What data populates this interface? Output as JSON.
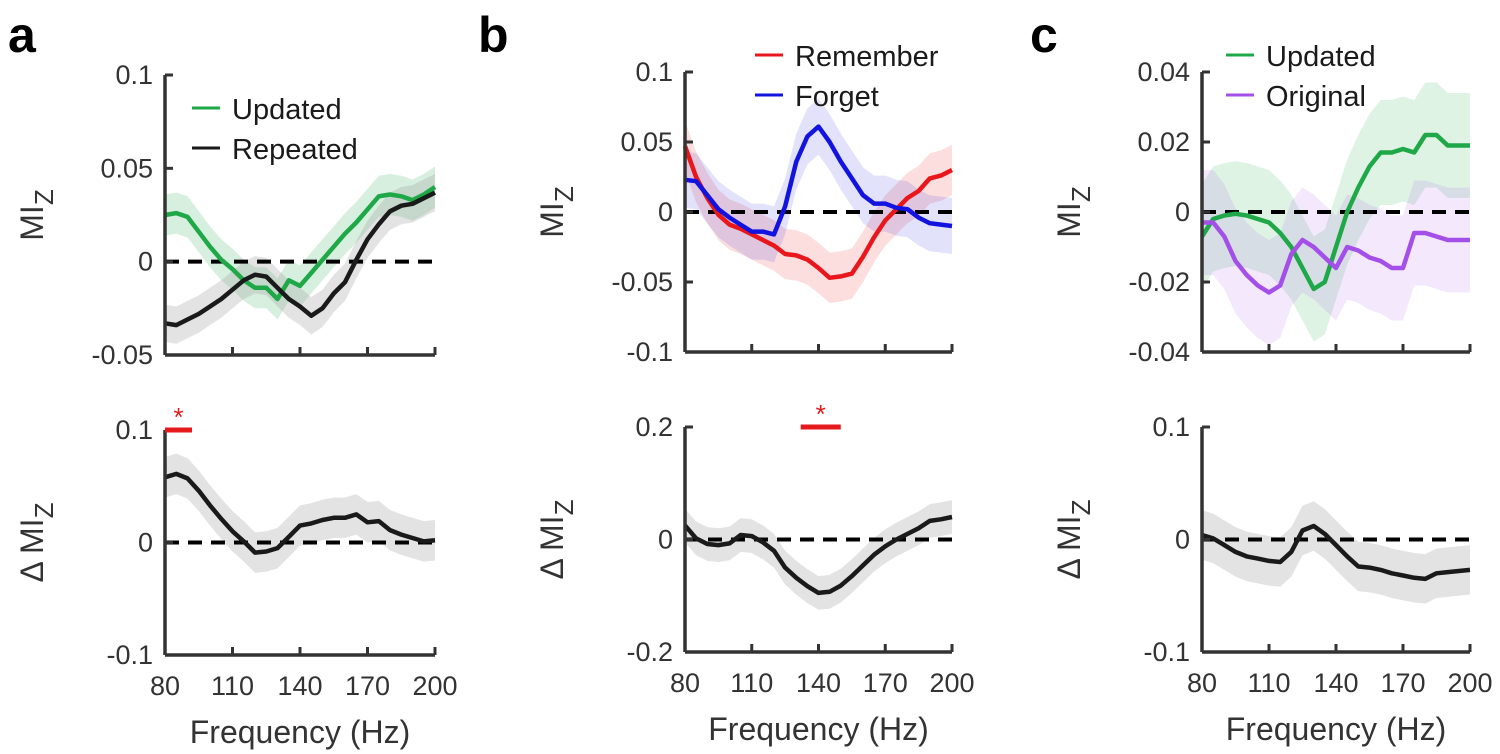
{
  "figure": {
    "panel_labels": [
      "a",
      "b",
      "c"
    ],
    "x_axis_label": "Frequency (Hz)",
    "y_label_top": "MI",
    "y_label_bottom": "Δ MI",
    "y_label_subscript": "Z",
    "significance_mark": "*"
  },
  "chart_data": [
    {
      "id": "a_top",
      "type": "line",
      "panel": "a",
      "xlim": [
        80,
        200
      ],
      "ylim": [
        -0.05,
        0.1
      ],
      "xticks": [
        80,
        110,
        140,
        170,
        200
      ],
      "xtick_labels": [
        "80",
        "110",
        "140",
        "170",
        "200"
      ],
      "yticks": [
        -0.05,
        0,
        0.05,
        0.1
      ],
      "ytick_labels": [
        "-0.05",
        "0",
        "0.05",
        "0.1"
      ],
      "show_xticklabels": false,
      "zero_line": true,
      "legend": {
        "position": "top-right",
        "entries": [
          {
            "label": "Updated",
            "color": "#1fa847"
          },
          {
            "label": "Repeated",
            "color": "#1a1a1a"
          }
        ]
      },
      "x": [
        80,
        85,
        90,
        95,
        100,
        105,
        110,
        115,
        120,
        125,
        130,
        135,
        140,
        145,
        150,
        155,
        160,
        165,
        170,
        175,
        180,
        185,
        190,
        195,
        200
      ],
      "series": [
        {
          "name": "Updated",
          "color": "#1fa847",
          "band": "#1fa847",
          "band_opacity": 0.18,
          "values": [
            0.025,
            0.026,
            0.024,
            0.016,
            0.008,
            0.001,
            -0.004,
            -0.01,
            -0.014,
            -0.014,
            -0.02,
            -0.01,
            -0.013,
            -0.006,
            0.001,
            0.008,
            0.015,
            0.021,
            0.028,
            0.035,
            0.036,
            0.035,
            0.033,
            0.036,
            0.04
          ],
          "error": 0.011
        },
        {
          "name": "Repeated",
          "color": "#1a1a1a",
          "band": "#9a9a9a",
          "band_opacity": 0.28,
          "values": [
            -0.033,
            -0.034,
            -0.031,
            -0.028,
            -0.024,
            -0.02,
            -0.015,
            -0.01,
            -0.007,
            -0.008,
            -0.014,
            -0.02,
            -0.024,
            -0.029,
            -0.025,
            -0.017,
            -0.011,
            0.001,
            0.012,
            0.02,
            0.027,
            0.03,
            0.031,
            0.034,
            0.037
          ],
          "error": 0.01
        }
      ]
    },
    {
      "id": "a_bottom",
      "type": "line",
      "panel": "a",
      "xlim": [
        80,
        200
      ],
      "ylim": [
        -0.1,
        0.1
      ],
      "xticks": [
        80,
        110,
        140,
        170,
        200
      ],
      "xtick_labels": [
        "80",
        "110",
        "140",
        "170",
        "200"
      ],
      "yticks": [
        -0.1,
        0,
        0.1
      ],
      "ytick_labels": [
        "-0.1",
        "0",
        "0.1"
      ],
      "show_xticklabels": true,
      "zero_line": true,
      "significance": {
        "x_start": 80,
        "x_end": 92,
        "y": 0.1
      },
      "x": [
        80,
        85,
        90,
        95,
        100,
        105,
        110,
        115,
        120,
        125,
        130,
        135,
        140,
        145,
        150,
        155,
        160,
        165,
        170,
        175,
        180,
        185,
        190,
        195,
        200
      ],
      "series": [
        {
          "name": "Δ",
          "color": "#1a1a1a",
          "band": "#9a9a9a",
          "band_opacity": 0.28,
          "values": [
            0.058,
            0.061,
            0.057,
            0.046,
            0.033,
            0.021,
            0.01,
            0.001,
            -0.009,
            -0.008,
            -0.005,
            0.005,
            0.015,
            0.017,
            0.02,
            0.022,
            0.022,
            0.025,
            0.018,
            0.019,
            0.011,
            0.007,
            0.004,
            0.001,
            0.002
          ],
          "error": 0.018
        }
      ]
    },
    {
      "id": "b_top",
      "type": "line",
      "panel": "b",
      "xlim": [
        80,
        200
      ],
      "ylim": [
        -0.1,
        0.1
      ],
      "xticks": [
        80,
        110,
        140,
        170,
        200
      ],
      "xtick_labels": [
        "80",
        "110",
        "140",
        "170",
        "200"
      ],
      "yticks": [
        -0.1,
        -0.05,
        0,
        0.05,
        0.1
      ],
      "ytick_labels": [
        "-0.1",
        "-0.05",
        "0",
        "0.05",
        "0.1"
      ],
      "show_xticklabels": false,
      "zero_line": true,
      "legend": {
        "position": "top-right",
        "entries": [
          {
            "label": "Remember",
            "color": "#e8171c"
          },
          {
            "label": "Forget",
            "color": "#1313e0"
          }
        ]
      },
      "x": [
        80,
        85,
        90,
        95,
        100,
        105,
        110,
        115,
        120,
        125,
        130,
        135,
        140,
        145,
        150,
        155,
        160,
        165,
        170,
        175,
        180,
        185,
        190,
        195,
        200
      ],
      "series": [
        {
          "name": "Remember",
          "color": "#e8171c",
          "band": "#e8171c",
          "band_opacity": 0.14,
          "values": [
            0.047,
            0.025,
            0.01,
            -0.002,
            -0.009,
            -0.012,
            -0.016,
            -0.02,
            -0.024,
            -0.03,
            -0.031,
            -0.034,
            -0.04,
            -0.047,
            -0.046,
            -0.044,
            -0.032,
            -0.018,
            -0.006,
            0.002,
            0.01,
            0.015,
            0.024,
            0.026,
            0.03
          ],
          "error": 0.018
        },
        {
          "name": "Forget",
          "color": "#1313e0",
          "band": "#1313e0",
          "band_opacity": 0.12,
          "values": [
            0.023,
            0.022,
            0.012,
            0.002,
            -0.004,
            -0.009,
            -0.014,
            -0.014,
            -0.016,
            0.004,
            0.036,
            0.054,
            0.061,
            0.05,
            0.036,
            0.024,
            0.012,
            0.006,
            0.006,
            0.003,
            0.002,
            -0.004,
            -0.008,
            -0.009,
            -0.01
          ],
          "error": 0.02
        }
      ]
    },
    {
      "id": "b_bottom",
      "type": "line",
      "panel": "b",
      "xlim": [
        80,
        200
      ],
      "ylim": [
        -0.2,
        0.2
      ],
      "xticks": [
        80,
        110,
        140,
        170,
        200
      ],
      "xtick_labels": [
        "80",
        "110",
        "140",
        "170",
        "200"
      ],
      "yticks": [
        -0.2,
        0,
        0.2
      ],
      "ytick_labels": [
        "-0.2",
        "0",
        "0.2"
      ],
      "show_xticklabels": true,
      "zero_line": true,
      "significance": {
        "x_start": 132,
        "x_end": 150,
        "y": 0.2
      },
      "x": [
        80,
        85,
        90,
        95,
        100,
        105,
        110,
        115,
        120,
        125,
        130,
        135,
        140,
        145,
        150,
        155,
        160,
        165,
        170,
        175,
        180,
        185,
        190,
        195,
        200
      ],
      "series": [
        {
          "name": "Δ",
          "color": "#1a1a1a",
          "band": "#9a9a9a",
          "band_opacity": 0.28,
          "values": [
            0.025,
            0.002,
            -0.008,
            -0.01,
            -0.007,
            0.008,
            0.006,
            -0.005,
            -0.02,
            -0.05,
            -0.068,
            -0.083,
            -0.095,
            -0.093,
            -0.082,
            -0.065,
            -0.046,
            -0.027,
            -0.012,
            0.0,
            0.01,
            0.02,
            0.033,
            0.036,
            0.04
          ],
          "error": 0.03
        }
      ]
    },
    {
      "id": "c_top",
      "type": "line",
      "panel": "c",
      "xlim": [
        80,
        200
      ],
      "ylim": [
        -0.04,
        0.04
      ],
      "xticks": [
        80,
        110,
        140,
        170,
        200
      ],
      "xtick_labels": [
        "80",
        "110",
        "140",
        "170",
        "200"
      ],
      "yticks": [
        -0.04,
        -0.02,
        0,
        0.02,
        0.04
      ],
      "ytick_labels": [
        "-0.04",
        "-0.02",
        "0",
        "0.02",
        "0.04"
      ],
      "show_xticklabels": false,
      "zero_line": true,
      "legend": {
        "position": "top-right",
        "entries": [
          {
            "label": "Updated",
            "color": "#1fa847"
          },
          {
            "label": "Original",
            "color": "#a34fe8"
          }
        ]
      },
      "x": [
        80,
        85,
        90,
        95,
        100,
        105,
        110,
        115,
        120,
        125,
        130,
        135,
        140,
        145,
        150,
        155,
        160,
        165,
        170,
        175,
        180,
        185,
        190,
        195,
        200
      ],
      "series": [
        {
          "name": "Updated",
          "color": "#1fa847",
          "band": "#1fa847",
          "band_opacity": 0.14,
          "values": [
            -0.007,
            -0.002,
            -0.001,
            -0.0005,
            -0.001,
            -0.002,
            -0.003,
            -0.006,
            -0.01,
            -0.016,
            -0.022,
            -0.02,
            -0.01,
            0.0,
            0.007,
            0.013,
            0.017,
            0.017,
            0.018,
            0.017,
            0.022,
            0.022,
            0.019,
            0.019,
            0.019
          ],
          "error": 0.015
        },
        {
          "name": "Original",
          "color": "#a34fe8",
          "band": "#a34fe8",
          "band_opacity": 0.13,
          "values": [
            -0.003,
            -0.003,
            -0.007,
            -0.014,
            -0.018,
            -0.021,
            -0.023,
            -0.021,
            -0.012,
            -0.008,
            -0.01,
            -0.013,
            -0.016,
            -0.01,
            -0.011,
            -0.013,
            -0.014,
            -0.016,
            -0.016,
            -0.006,
            -0.006,
            -0.007,
            -0.008,
            -0.008,
            -0.008
          ],
          "error": 0.015
        }
      ]
    },
    {
      "id": "c_bottom",
      "type": "line",
      "panel": "c",
      "xlim": [
        80,
        200
      ],
      "ylim": [
        -0.1,
        0.1
      ],
      "xticks": [
        80,
        110,
        140,
        170,
        200
      ],
      "xtick_labels": [
        "80",
        "110",
        "140",
        "170",
        "200"
      ],
      "yticks": [
        -0.1,
        0,
        0.1
      ],
      "ytick_labels": [
        "-0.1",
        "0",
        "0.1"
      ],
      "show_xticklabels": true,
      "zero_line": true,
      "x": [
        80,
        85,
        90,
        95,
        100,
        105,
        110,
        115,
        120,
        125,
        130,
        135,
        140,
        145,
        150,
        155,
        160,
        165,
        170,
        175,
        180,
        185,
        190,
        195,
        200
      ],
      "series": [
        {
          "name": "Δ",
          "color": "#1a1a1a",
          "band": "#9a9a9a",
          "band_opacity": 0.28,
          "values": [
            0.004,
            0.001,
            -0.005,
            -0.011,
            -0.015,
            -0.017,
            -0.019,
            -0.02,
            -0.011,
            0.008,
            0.012,
            0.005,
            -0.005,
            -0.015,
            -0.024,
            -0.025,
            -0.027,
            -0.03,
            -0.032,
            -0.034,
            -0.035,
            -0.03,
            -0.029,
            -0.028,
            -0.027
          ],
          "error": 0.022
        }
      ]
    }
  ]
}
